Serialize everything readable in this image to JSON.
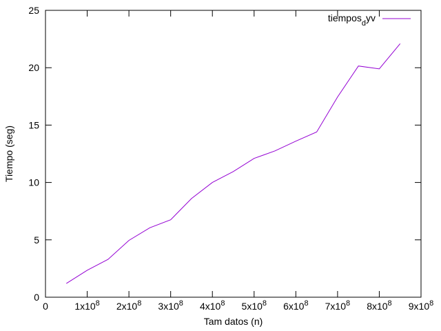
{
  "chart_data": {
    "type": "line",
    "title": "",
    "xlabel": "Tam datos (n)",
    "ylabel": "Tiempo (seg)",
    "xlim": [
      0,
      900000000
    ],
    "ylim": [
      0,
      25
    ],
    "x_ticks": [
      {
        "value": 0,
        "label": "0",
        "exp": ""
      },
      {
        "value": 100000000,
        "label": "1x10",
        "exp": "8"
      },
      {
        "value": 200000000,
        "label": "2x10",
        "exp": "8"
      },
      {
        "value": 300000000,
        "label": "3x10",
        "exp": "8"
      },
      {
        "value": 400000000,
        "label": "4x10",
        "exp": "8"
      },
      {
        "value": 500000000,
        "label": "5x10",
        "exp": "8"
      },
      {
        "value": 600000000,
        "label": "6x10",
        "exp": "8"
      },
      {
        "value": 700000000,
        "label": "7x10",
        "exp": "8"
      },
      {
        "value": 800000000,
        "label": "8x10",
        "exp": "8"
      },
      {
        "value": 900000000,
        "label": "9x10",
        "exp": "8"
      }
    ],
    "y_ticks": [
      {
        "value": 0,
        "label": "0"
      },
      {
        "value": 5,
        "label": "5"
      },
      {
        "value": 10,
        "label": "10"
      },
      {
        "value": 15,
        "label": "15"
      },
      {
        "value": 20,
        "label": "20"
      },
      {
        "value": 25,
        "label": "25"
      }
    ],
    "grid": false,
    "legend_position": "top-right",
    "legend": {
      "main": "tiempos",
      "sub": "d",
      "tail": "yv"
    },
    "series": [
      {
        "color": "#9400d3",
        "x": [
          50000000,
          100000000,
          150000000,
          200000000,
          250000000,
          300000000,
          350000000,
          400000000,
          450000000,
          500000000,
          550000000,
          600000000,
          650000000,
          700000000,
          750000000,
          800000000,
          850000000
        ],
        "y": [
          1.2,
          2.35,
          3.3,
          4.95,
          6.05,
          6.75,
          8.6,
          10.0,
          10.95,
          12.1,
          12.75,
          13.6,
          14.4,
          17.45,
          20.15,
          19.9,
          22.1
        ]
      }
    ]
  }
}
